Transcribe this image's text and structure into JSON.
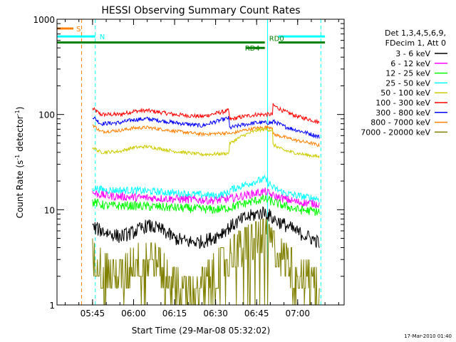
{
  "chart_data": {
    "type": "line",
    "title": "HESSI Observing Summary Count Rates",
    "xlabel": "Start Time (29-Mar-08 05:32:02)",
    "ylabel_main": "Count Rate (s",
    "ylabel_sup1": "-1",
    "ylabel_mid": " detector",
    "ylabel_sup2": "-1",
    "ylabel_end": ")",
    "yscale": "log",
    "ylim": [
      1,
      1000
    ],
    "xlim": [
      "05:32",
      "07:17"
    ],
    "x_ticks": [
      "05:45",
      "06:00",
      "06:15",
      "06:30",
      "06:45",
      "07:00"
    ],
    "x_tick_values": [
      45,
      60,
      75,
      90,
      105,
      120
    ],
    "y_ticks": [
      "1",
      "10",
      "100",
      "1000"
    ],
    "timestamp": "17-Mar-2010 01:40",
    "legend": {
      "header1": "Det 1,3,4,5,6,9,",
      "header2": "FDecim 1, Att 0",
      "entries": [
        {
          "name": "3 - 6 keV",
          "color": "#000000"
        },
        {
          "name": "6 - 12 keV",
          "color": "#ff00ff"
        },
        {
          "name": "12 - 25 keV",
          "color": "#00ff00"
        },
        {
          "name": "25 - 50 keV",
          "color": "#00ffff"
        },
        {
          "name": "50 - 100 keV",
          "color": "#cccc00"
        },
        {
          "name": "100 - 300 keV",
          "color": "#ff0000"
        },
        {
          "name": "300 - 800 keV",
          "color": "#0000ff"
        },
        {
          "name": "800 - 7000 keV",
          "color": "#ff8000"
        },
        {
          "name": "7000 - 20000 keV",
          "color": "#808000"
        }
      ]
    },
    "flags": [
      {
        "label": "S",
        "color": "#ff8000",
        "x": [
          32,
          38
        ],
        "y": 800
      },
      {
        "label": "N",
        "color": "#00ffff",
        "x": [
          32,
          46
        ],
        "y": 660
      },
      {
        "label": "N",
        "color": "#00ffff",
        "x": [
          113,
          130
        ],
        "y": 660
      },
      {
        "label": "RD0",
        "color": "#008000",
        "x": [
          32,
          108
        ],
        "y": 570
      },
      {
        "label": "RD0",
        "color": "#008000",
        "x": [
          113,
          130
        ],
        "y": 570
      },
      {
        "label": "RD4",
        "color": "#008000",
        "x": [
          101,
          108
        ],
        "y": 500
      }
    ],
    "vlines": [
      {
        "x": 32,
        "color": "#00ffff",
        "dashed": false
      },
      {
        "x": 41,
        "color": "#ff8000",
        "dashed": true
      },
      {
        "x": 46,
        "color": "#00ffff",
        "dashed": true
      },
      {
        "x": 109,
        "color": "#00ffff",
        "dashed": false
      },
      {
        "x": 128.5,
        "color": "#00ffff",
        "dashed": true
      }
    ],
    "series": [
      {
        "name": "100 - 300 keV",
        "color": "#ff0000",
        "noise": 0.05,
        "x": [
          45,
          48,
          55,
          60,
          65,
          75,
          85,
          94.9,
          95,
          100,
          105,
          108,
          110.9,
          111,
          115,
          120,
          125,
          128
        ],
        "y": [
          115,
          100,
          100,
          108,
          110,
          100,
          95,
          110,
          88,
          95,
          100,
          100,
          100,
          125,
          108,
          95,
          88,
          82
        ]
      },
      {
        "name": "300 - 800 keV",
        "color": "#0000ff",
        "noise": 0.05,
        "x": [
          45,
          48,
          55,
          60,
          65,
          75,
          85,
          94.9,
          95,
          100,
          105,
          108,
          110.9,
          111,
          115,
          120,
          125,
          128
        ],
        "y": [
          95,
          80,
          82,
          88,
          90,
          82,
          76,
          92,
          72,
          78,
          82,
          82,
          82,
          85,
          75,
          68,
          62,
          58
        ]
      },
      {
        "name": "800 - 7000 keV",
        "color": "#ff8000",
        "noise": 0.04,
        "x": [
          45,
          48,
          55,
          60,
          65,
          75,
          85,
          94.9,
          95,
          100,
          105,
          108,
          110.9,
          111,
          115,
          120,
          125,
          128
        ],
        "y": [
          78,
          66,
          68,
          72,
          73,
          67,
          62,
          64,
          62,
          68,
          72,
          73,
          74,
          62,
          58,
          53,
          50,
          47
        ]
      },
      {
        "name": "50 - 100 keV",
        "color": "#cccc00",
        "noise": 0.04,
        "x": [
          45,
          48,
          55,
          60,
          65,
          75,
          85,
          94.9,
          95,
          100,
          105,
          108,
          110.9,
          111,
          115,
          120,
          125,
          128
        ],
        "y": [
          45,
          40,
          41,
          45,
          46,
          41,
          38,
          39,
          49,
          60,
          68,
          70,
          68,
          48,
          42,
          39,
          37,
          36
        ]
      },
      {
        "name": "25 - 50 keV",
        "color": "#00ffff",
        "noise": 0.09,
        "x": [
          45,
          50,
          60,
          75,
          90,
          94.9,
          95,
          100,
          105,
          108,
          111,
          115,
          120,
          128
        ],
        "y": [
          17,
          16,
          16,
          15,
          14,
          15,
          16,
          18,
          20,
          21,
          17,
          15,
          14,
          13
        ]
      },
      {
        "name": "6 - 12 keV",
        "color": "#ff00ff",
        "noise": 0.1,
        "x": [
          45,
          50,
          60,
          75,
          90,
          95,
          100,
          105,
          108,
          111,
          115,
          120,
          128
        ],
        "y": [
          15,
          14,
          13.5,
          13,
          12.5,
          13,
          14,
          15,
          15.5,
          14,
          13,
          12,
          11.5
        ]
      },
      {
        "name": "12 - 25 keV",
        "color": "#00ff00",
        "noise": 0.11,
        "x": [
          45,
          50,
          60,
          75,
          90,
          95,
          100,
          105,
          108,
          111,
          115,
          120,
          128
        ],
        "y": [
          12,
          11,
          11,
          10.5,
          10,
          10.5,
          11.5,
          12.5,
          13,
          12,
          11,
          10,
          9.5
        ]
      },
      {
        "name": "3 - 6 keV",
        "color": "#000000",
        "noise": 0.17,
        "x": [
          45,
          50,
          55,
          60,
          65,
          70,
          75,
          80,
          85,
          90,
          95,
          100,
          105,
          108,
          111,
          115,
          120,
          125,
          128
        ],
        "y": [
          6.5,
          5.8,
          5.2,
          5.8,
          6.8,
          6.2,
          5.0,
          4.6,
          4.6,
          5.2,
          6.5,
          8.0,
          9.0,
          9.5,
          8.0,
          7.0,
          5.8,
          5.0,
          4.5
        ]
      },
      {
        "name": "7000 - 20000 keV",
        "color": "#808000",
        "noise": 0.3,
        "step": true,
        "x": [
          45,
          50,
          55,
          60,
          65,
          70,
          75,
          80,
          85,
          90,
          95,
          100,
          105,
          108,
          111,
          115,
          120,
          125,
          128
        ],
        "y": [
          3.2,
          2.2,
          2.0,
          2.8,
          3.2,
          2.6,
          1.6,
          1.3,
          1.5,
          2.3,
          3.2,
          4.2,
          5.0,
          5.6,
          4.0,
          3.0,
          2.2,
          1.8,
          1.6
        ]
      }
    ]
  }
}
